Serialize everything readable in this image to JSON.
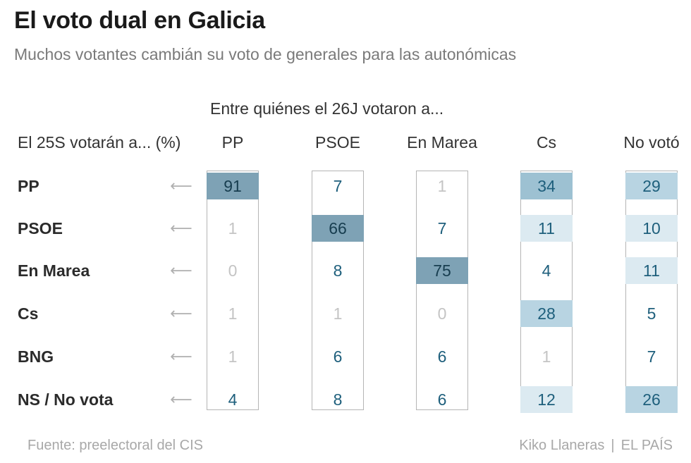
{
  "header": {
    "title": "El voto dual en Galicia",
    "subtitle": "Muchos votantes cambián su voto de generales para las autonómicas"
  },
  "footer": {
    "source": "Fuente: preelectoral del CIS",
    "author": "Kiko Llaneras",
    "separator": "|",
    "outlet": "EL PAÍS"
  },
  "chart_data": {
    "type": "table",
    "title": "El voto dual en Galicia",
    "subtitle": "Muchos votantes cambián su voto de generales para las autonómicas",
    "column_group_label": "Entre quiénes el 26J votaron a...",
    "row_header": "El 25S votarán a... (%)",
    "arrow_glyph": "⟵",
    "columns": [
      "PP",
      "PSOE",
      "En Marea",
      "Cs",
      "No votó"
    ],
    "rows": [
      "PP",
      "PSOE",
      "En Marea",
      "Cs",
      "BNG",
      "NS / No vota"
    ],
    "values": [
      [
        91,
        7,
        1,
        34,
        29
      ],
      [
        1,
        66,
        7,
        11,
        10
      ],
      [
        0,
        8,
        75,
        4,
        11
      ],
      [
        1,
        1,
        0,
        28,
        5
      ],
      [
        1,
        6,
        6,
        1,
        7
      ],
      [
        4,
        8,
        6,
        12,
        26
      ]
    ],
    "unit": "%",
    "colors": {
      "cell_high": "#7ea2b5",
      "cell_mid": "#9dc1d2",
      "cell_low": "#b8d4e2",
      "cell_faint": "#dceaf1",
      "text_value": "#1e5f7c",
      "text_dark": "#173d4f",
      "text_muted": "#c4c4c4"
    }
  }
}
